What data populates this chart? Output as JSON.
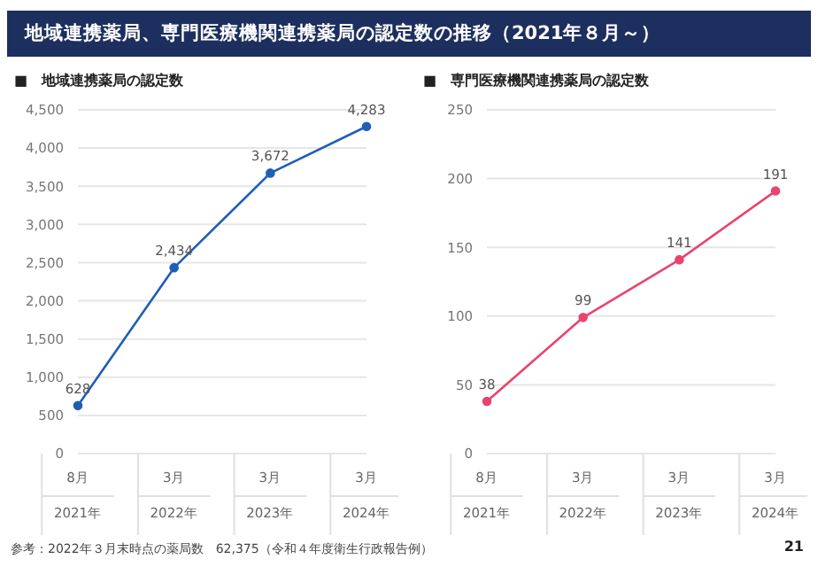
{
  "chart_data": [
    {
      "type": "line",
      "title": "地域連携薬局、専門医療機関連携薬局の認定数の推移（2021年８月～）",
      "subtitle": "■　地域連携薬局の認定数",
      "categories": [
        "8月\n2021年",
        "3月\n2022年",
        "3月\n2023年",
        "3月\n2024年"
      ],
      "values": [
        628,
        2434,
        3672,
        4283
      ],
      "value_labels": [
        "628",
        "2,434",
        "3,672",
        "4,283"
      ],
      "color": "#1f5fb4",
      "ylim": [
        0,
        4500
      ],
      "yticks": [
        0,
        {
          "value": 500,
          "label": "500"
        },
        {
          "value": 1000,
          "label": "1,000"
        },
        {
          "value": 1500,
          "label": "1,500"
        },
        {
          "value": 2000,
          "label": "2,000"
        },
        {
          "value": 2500,
          "label": "2,500"
        },
        {
          "value": 3000,
          "label": "3,000"
        },
        {
          "value": 3500,
          "label": "3,500"
        },
        {
          "value": 4000,
          "label": "4,000"
        },
        {
          "value": 4500,
          "label": "4,500"
        }
      ],
      "grid": "y",
      "marker": "circle",
      "line_style": "solid",
      "annotations": [
        "参考：2022年３月末時点の薬局数　62,375（令和４年度衛生行政報告例）",
        "21"
      ]
    },
    {
      "type": "line",
      "subtitle": "■　専門医療機関連携薬局の認定数",
      "categories": [
        "8月\n2021年",
        "3月\n2022年",
        "3月\n2023年",
        "3月\n2024年"
      ],
      "values": [
        38,
        99,
        141,
        191
      ],
      "data_labels": true,
      "color": "#e8456e",
      "ylim": [
        0,
        250
      ],
      "yticks": [
        0,
        50,
        100,
        150,
        200,
        250
      ],
      "grid": "y",
      "marker": "circle",
      "line_style": "solid"
    }
  ]
}
